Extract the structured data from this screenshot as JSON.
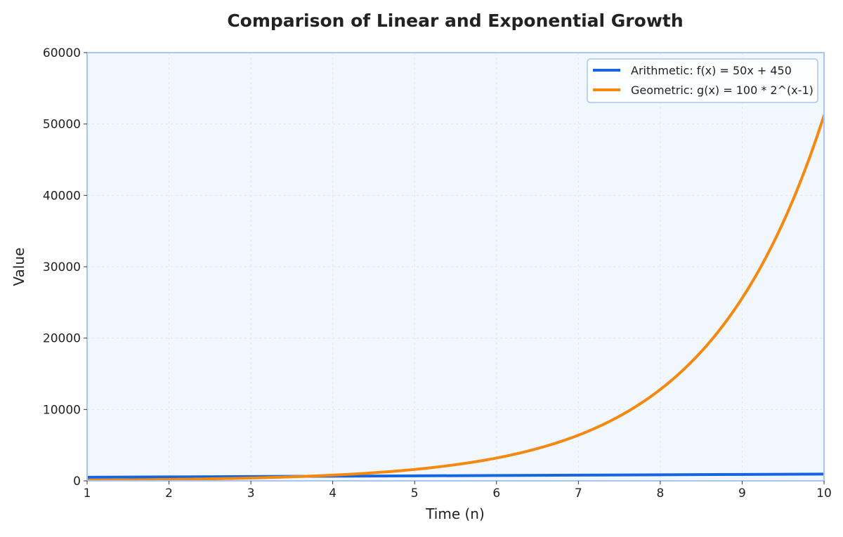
{
  "chart_data": {
    "type": "line",
    "title": "Comparison of Linear and Exponential Growth",
    "xlabel": "Time (n)",
    "ylabel": "Value",
    "xlim": [
      1,
      10
    ],
    "ylim": [
      0,
      60000
    ],
    "xticks": [
      "1",
      "2",
      "3",
      "4",
      "5",
      "6",
      "7",
      "8",
      "9",
      "10"
    ],
    "yticks": [
      "0",
      "10000",
      "20000",
      "30000",
      "40000",
      "50000",
      "60000"
    ],
    "grid": true,
    "legend_position": "top-right",
    "series": [
      {
        "name": "Arithmetic: f(x) = 50x + 450",
        "color": "#1565e0",
        "x": [
          1,
          2,
          3,
          4,
          5,
          6,
          7,
          8,
          9,
          10
        ],
        "y": [
          500,
          550,
          600,
          650,
          700,
          750,
          800,
          850,
          900,
          950
        ]
      },
      {
        "name": "Geometric: g(x) = 100 * 2^(x-1)",
        "color": "#f5890f",
        "x": [
          1,
          2,
          3,
          4,
          5,
          6,
          7,
          8,
          9,
          10
        ],
        "y": [
          100,
          200,
          400,
          800,
          1600,
          3200,
          6400,
          12800,
          25600,
          51200
        ]
      }
    ],
    "colors": {
      "plot_background": "#f2f7fd",
      "plot_border": "#a9c6f1",
      "grid": "#dbe6f4",
      "legend_border": "#a9c6f1"
    }
  }
}
